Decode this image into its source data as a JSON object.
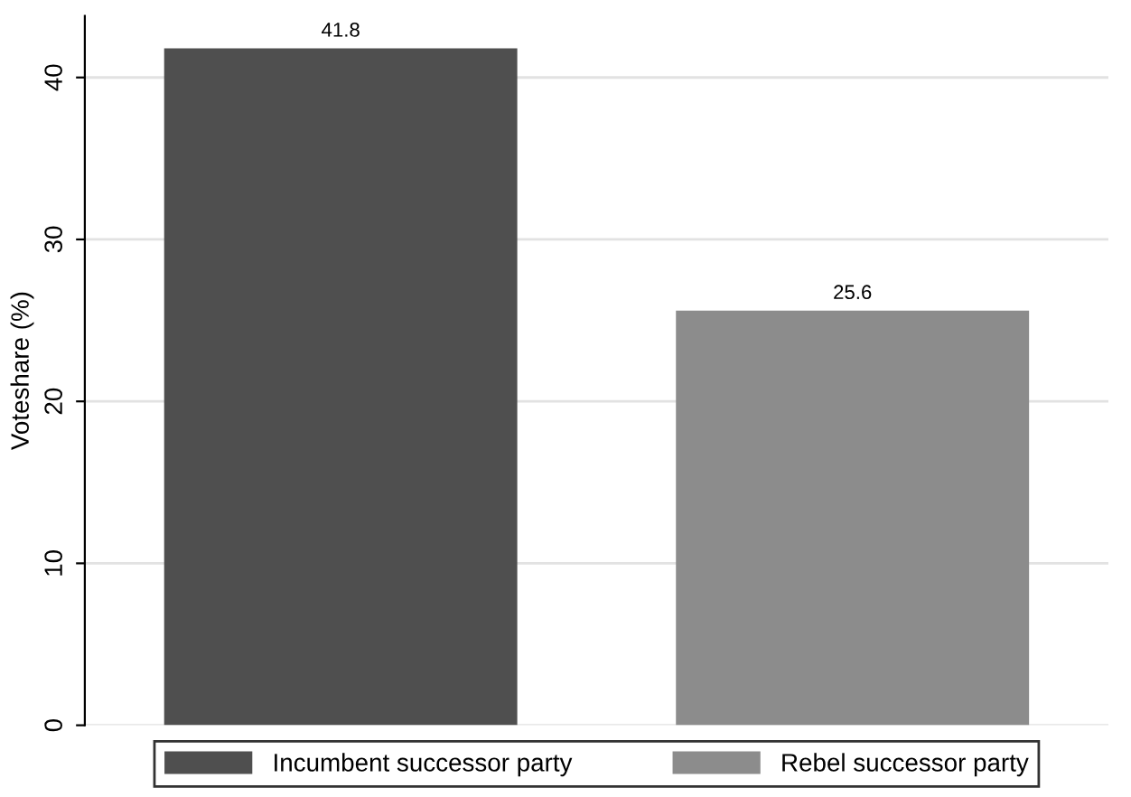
{
  "chart_data": {
    "type": "bar",
    "ylabel": "Voteshare (%)",
    "categories": [
      null,
      null
    ],
    "series": [
      {
        "name": "Incumbent successor party",
        "color": "#4f4f4f",
        "values": [
          41.8,
          null
        ]
      },
      {
        "name": "Rebel successor party",
        "color": "#8c8c8c",
        "values": [
          null,
          25.6
        ]
      }
    ],
    "ylim": [
      0,
      43.8
    ],
    "yticks": [
      0,
      10,
      20,
      30,
      40
    ],
    "grid": "y",
    "legend": "bottom",
    "data_labels": true
  }
}
